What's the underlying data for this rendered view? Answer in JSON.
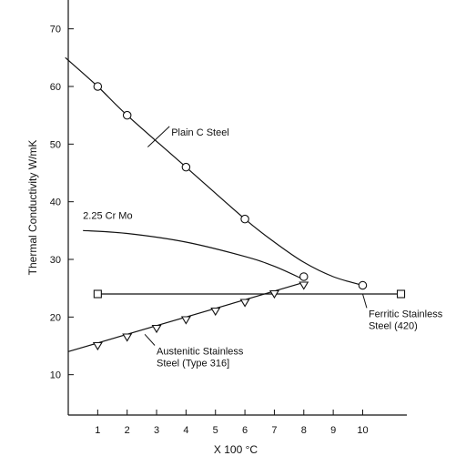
{
  "chart_data": {
    "type": "line",
    "xlabel": "X 100 °C",
    "ylabel": "Thermal Conductivity W/mK",
    "x_ticks": [
      "1",
      "2",
      "3",
      "4",
      "5",
      "6",
      "7",
      "8",
      "9",
      "10"
    ],
    "y_ticks": [
      "10",
      "20",
      "30",
      "40",
      "50",
      "60",
      "70"
    ],
    "xlim": [
      0,
      11.5
    ],
    "ylim": [
      3,
      75
    ],
    "grid": false,
    "series": [
      {
        "name": "Plain C Steel",
        "marker": "circle",
        "curve": [
          [
            -0.1,
            65
          ],
          [
            1,
            60
          ],
          [
            2,
            55
          ],
          [
            4,
            46
          ],
          [
            6,
            37
          ],
          [
            7,
            33
          ],
          [
            8,
            29.5
          ],
          [
            9,
            27
          ],
          [
            10,
            25.5
          ]
        ],
        "points": [
          [
            1,
            60
          ],
          [
            2,
            55
          ],
          [
            4,
            46
          ],
          [
            6,
            37
          ],
          [
            10,
            25.5
          ]
        ]
      },
      {
        "name": "2.25 Cr Mo",
        "marker": "circle",
        "curve": [
          [
            0.5,
            35
          ],
          [
            2,
            34.5
          ],
          [
            4,
            33
          ],
          [
            6,
            30.5
          ],
          [
            7,
            28.8
          ],
          [
            8,
            26.5
          ]
        ],
        "points": [
          [
            8,
            27
          ]
        ]
      },
      {
        "name": "Ferritic Stainless Steel (420)",
        "marker": "square",
        "curve": [
          [
            1,
            24
          ],
          [
            11.3,
            24
          ]
        ],
        "points": [
          [
            1,
            24
          ],
          [
            11.3,
            24
          ]
        ]
      },
      {
        "name": "Austenitic Stainless Steel (Type 316)",
        "marker": "triangle-down",
        "curve": [
          [
            0,
            14
          ],
          [
            8,
            26
          ]
        ],
        "points": [
          [
            1,
            15
          ],
          [
            2,
            16.5
          ],
          [
            3,
            18
          ],
          [
            4,
            19.5
          ],
          [
            5,
            21
          ],
          [
            6,
            22.5
          ],
          [
            7,
            24
          ],
          [
            8,
            25.5
          ]
        ]
      }
    ],
    "annotations": [
      {
        "lines": [
          "Plain C Steel"
        ],
        "anchor": [
          3.5,
          51.5
        ],
        "target": [
          2.7,
          49.5
        ]
      },
      {
        "lines": [
          "2.25 Cr Mo"
        ],
        "anchor": [
          0.5,
          37
        ],
        "target": null
      },
      {
        "lines": [
          "Ferritic Stainless",
          "Steel (420)"
        ],
        "anchor": [
          10.2,
          20
        ],
        "target": [
          10,
          24
        ]
      },
      {
        "lines": [
          "Austenitic Stainless",
          "Steel (Type 316]"
        ],
        "anchor": [
          3,
          13.5
        ],
        "target": [
          2.6,
          17
        ]
      }
    ]
  }
}
